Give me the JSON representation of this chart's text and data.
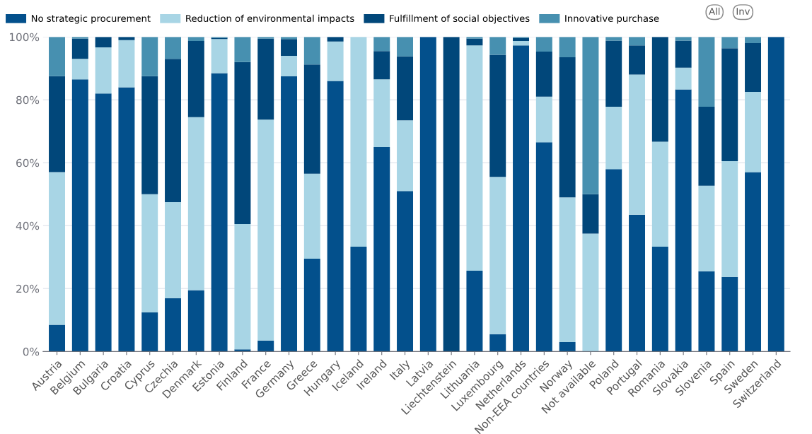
{
  "chart_data": {
    "type": "bar",
    "stacked": true,
    "categories": [
      "Austria",
      "Belgium",
      "Bulgaria",
      "Croatia",
      "Cyprus",
      "Czechia",
      "Denmark",
      "Estonia",
      "Finland",
      "France",
      "Germany",
      "Greece",
      "Hungary",
      "Iceland",
      "Ireland",
      "Italy",
      "Latvia",
      "Liechtenstein",
      "Lithuania",
      "Luxembourg",
      "Netherlands",
      "Non-EEA countries",
      "Norway",
      "Not available",
      "Poland",
      "Portugal",
      "Romania",
      "Slovakia",
      "Slovenia",
      "Spain",
      "Sweden",
      "Switzerland"
    ],
    "series": [
      {
        "name": "No strategic procurement",
        "color": "#03508c",
        "values": [
          8.5,
          86.5,
          82,
          84,
          12.5,
          17,
          19.5,
          88.5,
          0.7,
          3.5,
          87.5,
          29.5,
          86,
          33.3,
          65,
          51,
          100,
          0,
          25.7,
          5.5,
          97.3,
          66.5,
          3,
          0,
          58,
          43.5,
          33.3,
          83.3,
          25.5,
          23.7,
          57,
          100
        ]
      },
      {
        "name": "Reduction of environmental impacts",
        "color": "#a8d5e5",
        "values": [
          48.5,
          6.5,
          14.7,
          15,
          37.5,
          30.5,
          55,
          10.8,
          39.8,
          70.2,
          6.5,
          27,
          12.5,
          66.7,
          21.5,
          22.5,
          0,
          0,
          71.6,
          50,
          1.4,
          14.5,
          46,
          37.5,
          19.8,
          44.5,
          33.4,
          6.9,
          27.2,
          36.8,
          25.5,
          0
        ]
      },
      {
        "name": "Fulfillment of social objectives",
        "color": "#01477a",
        "values": [
          30.5,
          6.5,
          3.3,
          1,
          37.5,
          45.5,
          24.2,
          0.4,
          51.5,
          25.8,
          5.3,
          34.7,
          1.5,
          0,
          9,
          20.3,
          0,
          100,
          2.2,
          38.8,
          1,
          14.3,
          44.5,
          12.5,
          21,
          9.3,
          33.3,
          8.6,
          25.1,
          35.9,
          15.5,
          0
        ]
      },
      {
        "name": "Innovative purchase",
        "color": "#4790b0",
        "values": [
          12.5,
          0.5,
          0,
          0,
          12.5,
          7,
          1.3,
          0.3,
          8,
          0.5,
          0.7,
          8.8,
          0,
          0,
          4.5,
          6.2,
          0,
          0,
          0.5,
          5.7,
          0.3,
          4.7,
          6.5,
          50,
          1.2,
          2.7,
          0,
          1.2,
          22.2,
          3.6,
          2,
          0
        ]
      }
    ],
    "ylim": [
      0,
      100
    ],
    "yticks": [
      {
        "value": 0,
        "label": "0%"
      },
      {
        "value": 20,
        "label": "20%"
      },
      {
        "value": 40,
        "label": "40%"
      },
      {
        "value": 60,
        "label": "60%"
      },
      {
        "value": 80,
        "label": "80%"
      },
      {
        "value": 100,
        "label": "100%"
      }
    ],
    "grid": "y",
    "legend": "top",
    "annotations": [
      "All",
      "Inv"
    ]
  }
}
